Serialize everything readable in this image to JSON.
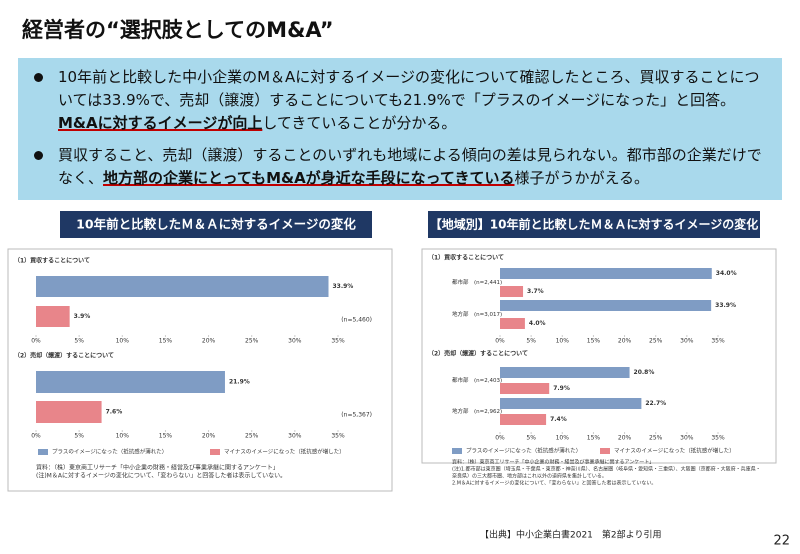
{
  "header": {
    "title": "経営者の“選択肢としてのM&A”"
  },
  "summary": {
    "bullets": [
      {
        "text": "10年前と比較した中小企業のM＆Aに対するイメージの変化について確認したところ、買収することについては33.9%で、売却（譲渡）することについても21.9%で「プラスのイメージになった」と回答。",
        "emphasis": "M&Aに対するイメージが向上",
        "tail": "してきていることが分かる。"
      },
      {
        "text": "買収すること、売却（譲渡）することのいずれも地域による傾向の差は見られない。都市部の企業だけでなく、",
        "emphasis": "地方部の企業にとってもM&Aが身近な手段になってきている",
        "tail": "様子がうかがえる。"
      }
    ]
  },
  "left_panel": {
    "heading": "10年前と比較したＭ＆Ａに対するイメージの変化",
    "notes": [
      "資料：（株）東京商工リサーチ「中小企業の財務・経営及び事業承継に関するアンケート」",
      "(注)M＆Aに対するイメージの変化について、「変わらない」と回答した者は表示していない。"
    ]
  },
  "right_panel": {
    "heading": "【地域別】10年前と比較したＭ＆Ａに対するイメージの変化",
    "notes": [
      "資料：（株）東京商工リサーチ「中小企業の財務・経営及び事業承継に関するアンケート」",
      "(注)1.都市部は東京圏（埼玉県・千葉県・東京都・神奈川県）、名古屋圏（岐阜県・愛知県・三重県）、大阪圏（京都府・大阪府・兵庫県・",
      "奈良県）の三大都市圏、地方部はこれ以外の道府県を集計している。",
      "2.M＆Aに対するイメージの変化について、「変わらない」と回答した者は表示していない。"
    ]
  },
  "chart_data": [
    {
      "type": "bar",
      "subtitle": "（1）買収することについて",
      "annotation": "(n=5,460)",
      "categories": [
        null
      ],
      "series": [
        {
          "color": "#7f9cc4",
          "values": [
            33.9
          ],
          "value_labels": [
            "33.9%"
          ]
        },
        {
          "color": "#e8858a",
          "values": [
            3.9
          ],
          "value_labels": [
            "3.9%"
          ]
        }
      ],
      "xlim": [
        0,
        35
      ],
      "xticks": [
        {
          "value": 0,
          "label": "0%"
        },
        {
          "value": 5,
          "label": "5%"
        },
        {
          "value": 10,
          "label": "10%"
        },
        {
          "value": 15,
          "label": "15%"
        },
        {
          "value": 20,
          "label": "20%"
        },
        {
          "value": 25,
          "label": "25%"
        },
        {
          "value": 30,
          "label": "30%"
        },
        {
          "value": 35,
          "label": "35%"
        }
      ]
    },
    {
      "type": "bar",
      "subtitle": "（2）売却（譲渡）することについて",
      "annotation": "(n=5,367)",
      "categories": [
        null
      ],
      "series": [
        {
          "name": "プラスのイメージになった（抵抗感が薄れた）",
          "color": "#7f9cc4",
          "values": [
            21.9
          ],
          "value_labels": [
            "21.9%"
          ]
        },
        {
          "name": "マイナスのイメージになった（抵抗感が増した）",
          "color": "#e8858a",
          "values": [
            7.6
          ],
          "value_labels": [
            "7.6%"
          ]
        }
      ],
      "xlim": [
        0,
        35
      ],
      "xticks": [
        {
          "value": 0,
          "label": "0%"
        },
        {
          "value": 5,
          "label": "5%"
        },
        {
          "value": 10,
          "label": "10%"
        },
        {
          "value": 15,
          "label": "15%"
        },
        {
          "value": 20,
          "label": "20%"
        },
        {
          "value": 25,
          "label": "25%"
        },
        {
          "value": 30,
          "label": "30%"
        },
        {
          "value": 35,
          "label": "35%"
        }
      ]
    },
    {
      "type": "bar",
      "subtitle": "（1）買収することについて",
      "categories": [
        "都市部　(n=2,441)",
        "地方部　(n=3,017)"
      ],
      "series": [
        {
          "color": "#7f9cc4",
          "values": [
            34.0,
            33.9
          ],
          "value_labels": [
            "34.0%",
            "33.9%"
          ]
        },
        {
          "color": "#e8858a",
          "values": [
            3.7,
            4.0
          ],
          "value_labels": [
            "3.7%",
            "4.0%"
          ]
        }
      ],
      "xlim": [
        0,
        35
      ],
      "xticks": [
        {
          "value": 0,
          "label": "0%"
        },
        {
          "value": 5,
          "label": "5%"
        },
        {
          "value": 10,
          "label": "10%"
        },
        {
          "value": 15,
          "label": "15%"
        },
        {
          "value": 20,
          "label": "20%"
        },
        {
          "value": 25,
          "label": "25%"
        },
        {
          "value": 30,
          "label": "30%"
        },
        {
          "value": 35,
          "label": "35%"
        }
      ]
    },
    {
      "type": "bar",
      "subtitle": "（2）売却（譲渡）することについて",
      "categories": [
        "都市部　(n=2,403)",
        "地方部　(n=2,962)"
      ],
      "series": [
        {
          "name": "プラスのイメージになった（抵抗感が薄れた）",
          "color": "#7f9cc4",
          "values": [
            20.8,
            22.7
          ],
          "value_labels": [
            "20.8%",
            "22.7%"
          ]
        },
        {
          "name": "マイナスのイメージになった（抵抗感が増した）",
          "color": "#e8858a",
          "values": [
            7.9,
            7.4
          ],
          "value_labels": [
            "7.9%",
            "7.4%"
          ]
        }
      ],
      "xlim": [
        0,
        35
      ],
      "xticks": [
        {
          "value": 0,
          "label": "0%"
        },
        {
          "value": 5,
          "label": "5%"
        },
        {
          "value": 10,
          "label": "10%"
        },
        {
          "value": 15,
          "label": "15%"
        },
        {
          "value": 20,
          "label": "20%"
        },
        {
          "value": 25,
          "label": "25%"
        },
        {
          "value": 30,
          "label": "30%"
        },
        {
          "value": 35,
          "label": "35%"
        }
      ]
    }
  ],
  "footer": {
    "source": "【出典】中小企業白書2021　第2部より引用",
    "page": "22"
  }
}
